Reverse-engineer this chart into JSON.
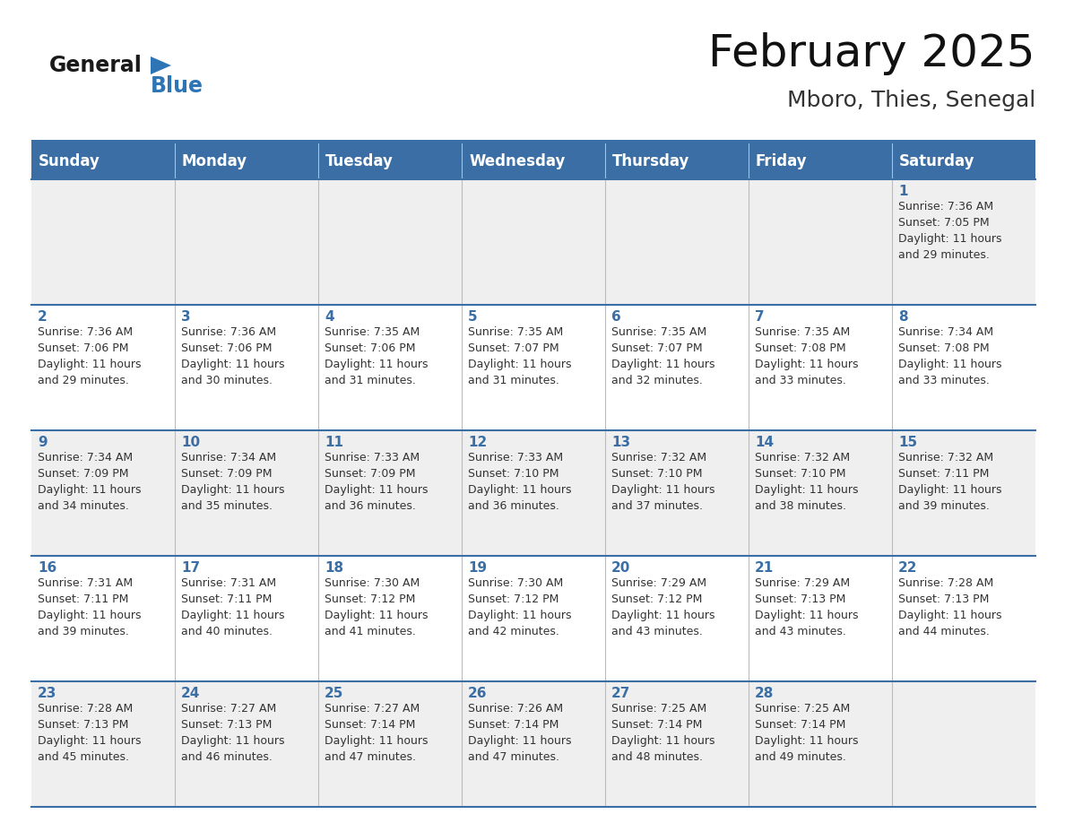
{
  "title": "February 2025",
  "subtitle": "Mboro, Thies, Senegal",
  "days_of_week": [
    "Sunday",
    "Monday",
    "Tuesday",
    "Wednesday",
    "Thursday",
    "Friday",
    "Saturday"
  ],
  "header_bg": "#3a6ea5",
  "header_text": "#ffffff",
  "row_bg_even": "#efefef",
  "row_bg_odd": "#ffffff",
  "day_num_color": "#3a6ea5",
  "text_color": "#333333",
  "border_color": "#3a6ea5",
  "fig_bg": "#ffffff",
  "calendar": [
    [
      null,
      null,
      null,
      null,
      null,
      null,
      {
        "day": 1,
        "sunrise": "7:36 AM",
        "sunset": "7:05 PM",
        "daylight": "11 hours and 29 minutes."
      }
    ],
    [
      {
        "day": 2,
        "sunrise": "7:36 AM",
        "sunset": "7:06 PM",
        "daylight": "11 hours and 29 minutes."
      },
      {
        "day": 3,
        "sunrise": "7:36 AM",
        "sunset": "7:06 PM",
        "daylight": "11 hours and 30 minutes."
      },
      {
        "day": 4,
        "sunrise": "7:35 AM",
        "sunset": "7:06 PM",
        "daylight": "11 hours and 31 minutes."
      },
      {
        "day": 5,
        "sunrise": "7:35 AM",
        "sunset": "7:07 PM",
        "daylight": "11 hours and 31 minutes."
      },
      {
        "day": 6,
        "sunrise": "7:35 AM",
        "sunset": "7:07 PM",
        "daylight": "11 hours and 32 minutes."
      },
      {
        "day": 7,
        "sunrise": "7:35 AM",
        "sunset": "7:08 PM",
        "daylight": "11 hours and 33 minutes."
      },
      {
        "day": 8,
        "sunrise": "7:34 AM",
        "sunset": "7:08 PM",
        "daylight": "11 hours and 33 minutes."
      }
    ],
    [
      {
        "day": 9,
        "sunrise": "7:34 AM",
        "sunset": "7:09 PM",
        "daylight": "11 hours and 34 minutes."
      },
      {
        "day": 10,
        "sunrise": "7:34 AM",
        "sunset": "7:09 PM",
        "daylight": "11 hours and 35 minutes."
      },
      {
        "day": 11,
        "sunrise": "7:33 AM",
        "sunset": "7:09 PM",
        "daylight": "11 hours and 36 minutes."
      },
      {
        "day": 12,
        "sunrise": "7:33 AM",
        "sunset": "7:10 PM",
        "daylight": "11 hours and 36 minutes."
      },
      {
        "day": 13,
        "sunrise": "7:32 AM",
        "sunset": "7:10 PM",
        "daylight": "11 hours and 37 minutes."
      },
      {
        "day": 14,
        "sunrise": "7:32 AM",
        "sunset": "7:10 PM",
        "daylight": "11 hours and 38 minutes."
      },
      {
        "day": 15,
        "sunrise": "7:32 AM",
        "sunset": "7:11 PM",
        "daylight": "11 hours and 39 minutes."
      }
    ],
    [
      {
        "day": 16,
        "sunrise": "7:31 AM",
        "sunset": "7:11 PM",
        "daylight": "11 hours and 39 minutes."
      },
      {
        "day": 17,
        "sunrise": "7:31 AM",
        "sunset": "7:11 PM",
        "daylight": "11 hours and 40 minutes."
      },
      {
        "day": 18,
        "sunrise": "7:30 AM",
        "sunset": "7:12 PM",
        "daylight": "11 hours and 41 minutes."
      },
      {
        "day": 19,
        "sunrise": "7:30 AM",
        "sunset": "7:12 PM",
        "daylight": "11 hours and 42 minutes."
      },
      {
        "day": 20,
        "sunrise": "7:29 AM",
        "sunset": "7:12 PM",
        "daylight": "11 hours and 43 minutes."
      },
      {
        "day": 21,
        "sunrise": "7:29 AM",
        "sunset": "7:13 PM",
        "daylight": "11 hours and 43 minutes."
      },
      {
        "day": 22,
        "sunrise": "7:28 AM",
        "sunset": "7:13 PM",
        "daylight": "11 hours and 44 minutes."
      }
    ],
    [
      {
        "day": 23,
        "sunrise": "7:28 AM",
        "sunset": "7:13 PM",
        "daylight": "11 hours and 45 minutes."
      },
      {
        "day": 24,
        "sunrise": "7:27 AM",
        "sunset": "7:13 PM",
        "daylight": "11 hours and 46 minutes."
      },
      {
        "day": 25,
        "sunrise": "7:27 AM",
        "sunset": "7:14 PM",
        "daylight": "11 hours and 47 minutes."
      },
      {
        "day": 26,
        "sunrise": "7:26 AM",
        "sunset": "7:14 PM",
        "daylight": "11 hours and 47 minutes."
      },
      {
        "day": 27,
        "sunrise": "7:25 AM",
        "sunset": "7:14 PM",
        "daylight": "11 hours and 48 minutes."
      },
      {
        "day": 28,
        "sunrise": "7:25 AM",
        "sunset": "7:14 PM",
        "daylight": "11 hours and 49 minutes."
      },
      null
    ]
  ],
  "title_fontsize": 36,
  "subtitle_fontsize": 18,
  "header_fontsize": 12,
  "daynum_fontsize": 11,
  "cell_text_fontsize": 9
}
